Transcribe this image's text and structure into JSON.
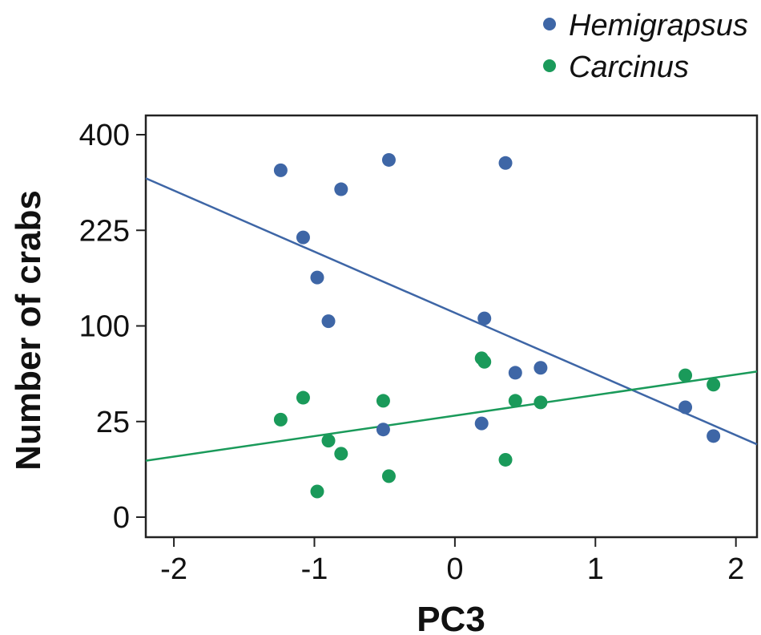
{
  "chart_data": {
    "type": "scatter",
    "title": "",
    "xlabel": "PC3",
    "ylabel": "Number of crabs",
    "xlim": [
      -2.2,
      2.15
    ],
    "x_ticks": [
      -2,
      -1,
      0,
      1,
      2
    ],
    "x_tick_labels": [
      "-2",
      "-1",
      "0",
      "1",
      "2"
    ],
    "y_ticks": [
      0,
      25,
      100,
      225,
      400
    ],
    "y_tick_labels": [
      "0",
      "25",
      "100",
      "225",
      "400"
    ],
    "y_scale": "square-root",
    "ylim": [
      -2,
      400
    ],
    "grid": false,
    "legend_position": "top-right",
    "series": [
      {
        "name": "Hemigrapsus",
        "color": "#3e66a6",
        "points": [
          {
            "x": -1.24,
            "y": 329
          },
          {
            "x": -0.81,
            "y": 294
          },
          {
            "x": -0.47,
            "y": 349
          },
          {
            "x": 0.36,
            "y": 343
          },
          {
            "x": -1.08,
            "y": 214
          },
          {
            "x": -0.98,
            "y": 157
          },
          {
            "x": -0.9,
            "y": 105
          },
          {
            "x": 0.21,
            "y": 108
          },
          {
            "x": 0.43,
            "y": 57
          },
          {
            "x": 0.61,
            "y": 61
          },
          {
            "x": -0.51,
            "y": 21
          },
          {
            "x": 0.19,
            "y": 24
          },
          {
            "x": 1.64,
            "y": 33
          },
          {
            "x": 1.84,
            "y": 18
          }
        ],
        "trend_line": [
          {
            "x": -2.2,
            "y": 314
          },
          {
            "x": 2.15,
            "y": 14.5
          }
        ]
      },
      {
        "name": "Carcinus",
        "color": "#1a9a5a",
        "points": [
          {
            "x": -1.24,
            "y": 26
          },
          {
            "x": -1.08,
            "y": 39
          },
          {
            "x": -0.9,
            "y": 16
          },
          {
            "x": -0.81,
            "y": 11
          },
          {
            "x": -0.98,
            "y": 1.8
          },
          {
            "x": -0.51,
            "y": 37
          },
          {
            "x": -0.47,
            "y": 4.6
          },
          {
            "x": 0.19,
            "y": 69
          },
          {
            "x": 0.21,
            "y": 66
          },
          {
            "x": 0.36,
            "y": 9
          },
          {
            "x": 0.43,
            "y": 37
          },
          {
            "x": 0.61,
            "y": 36
          },
          {
            "x": 1.64,
            "y": 55
          },
          {
            "x": 1.84,
            "y": 48
          }
        ],
        "trend_line": [
          {
            "x": -2.2,
            "y": 8.7
          },
          {
            "x": 2.15,
            "y": 58
          }
        ]
      }
    ]
  }
}
